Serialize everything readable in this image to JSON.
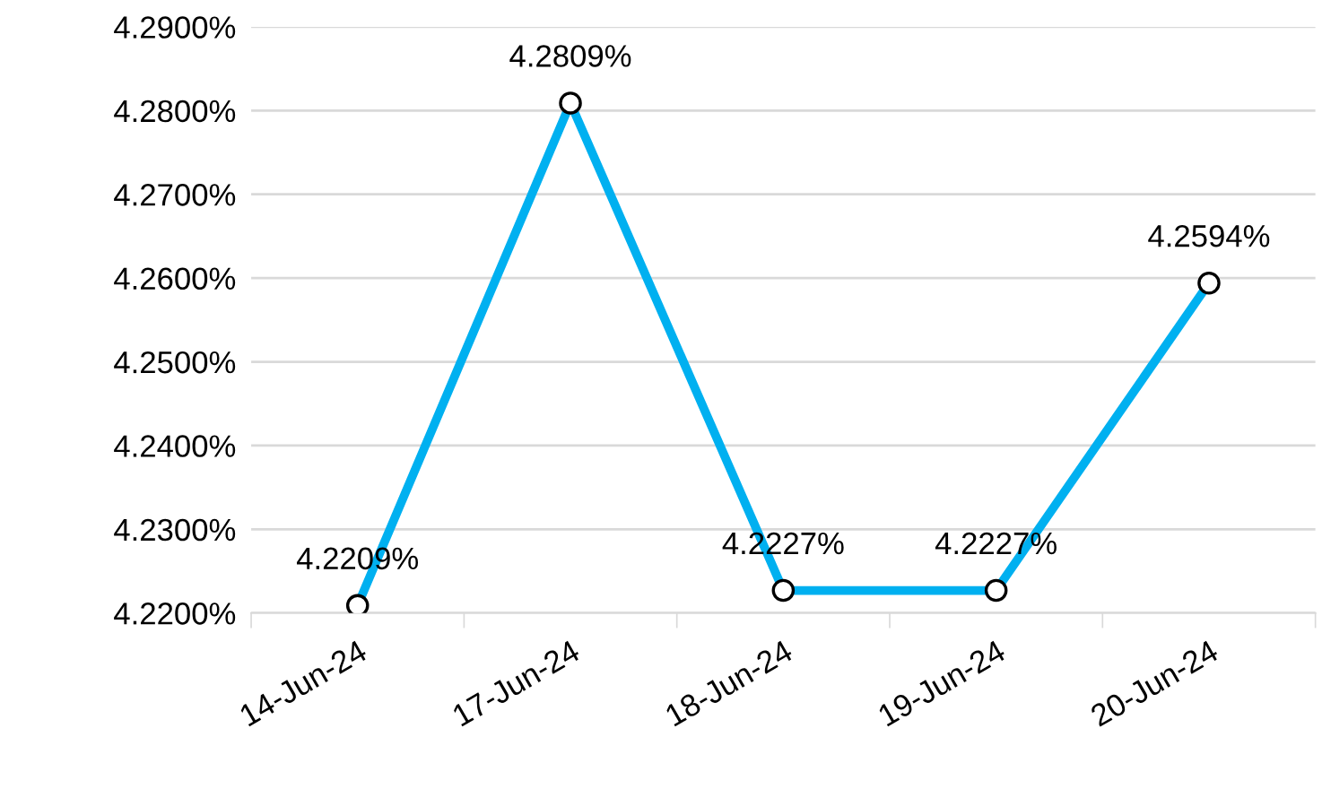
{
  "chart_data": {
    "type": "line",
    "categories": [
      "14-Jun-24",
      "17-Jun-24",
      "18-Jun-24",
      "19-Jun-24",
      "20-Jun-24"
    ],
    "series": [
      {
        "color": "#00b0f0",
        "values": [
          4.2209,
          4.2809,
          4.2227,
          4.2227,
          4.2594
        ],
        "value_labels": [
          "4.2209%",
          "4.2809%",
          "4.2227%",
          "4.2227%",
          "4.2594%"
        ]
      }
    ],
    "ylim": [
      4.22,
      4.29
    ],
    "yticks": [
      {
        "value": 4.22,
        "label": "4.2200%"
      },
      {
        "value": 4.23,
        "label": "4.2300%"
      },
      {
        "value": 4.24,
        "label": "4.2400%"
      },
      {
        "value": 4.25,
        "label": "4.2500%"
      },
      {
        "value": 4.26,
        "label": "4.2600%"
      },
      {
        "value": 4.27,
        "label": "4.2700%"
      },
      {
        "value": 4.28,
        "label": "4.2800%"
      },
      {
        "value": 4.29,
        "label": "4.2900%"
      }
    ],
    "grid": "y",
    "marker": "circle",
    "line_style": "solid"
  }
}
